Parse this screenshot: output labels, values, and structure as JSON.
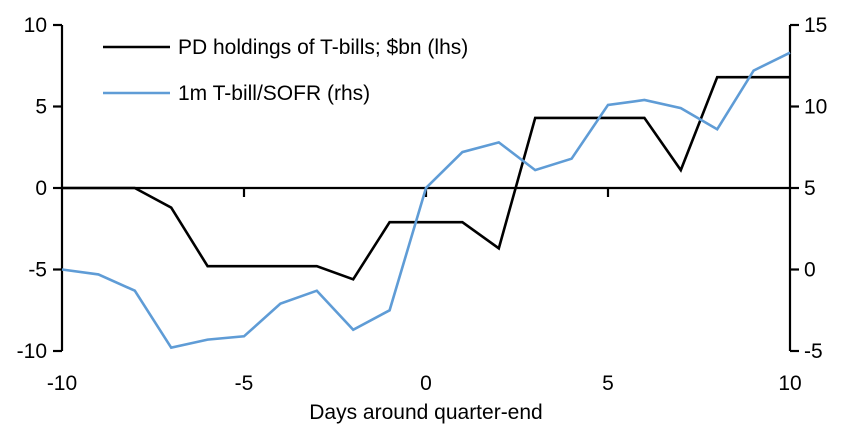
{
  "chart_data": {
    "type": "line",
    "title": "",
    "xlabel": "Days around quarter-end",
    "ylabel_left": "",
    "ylabel_right": "",
    "grid": false,
    "legend_position": "top-left",
    "x": [
      -10,
      -9,
      -8,
      -7,
      -6,
      -5,
      -4,
      -3,
      -2,
      -1,
      0,
      1,
      2,
      3,
      4,
      5,
      6,
      7,
      8,
      9,
      10
    ],
    "series": [
      {
        "name": "PD holdings of T-bills; $bn (lhs)",
        "axis": "left",
        "color": "#000000",
        "values": [
          0,
          0,
          0,
          -1.2,
          -4.8,
          -4.8,
          -4.8,
          -4.8,
          -5.6,
          -2.1,
          -2.1,
          -2.1,
          -3.7,
          4.3,
          4.3,
          4.3,
          4.3,
          1.1,
          6.8,
          6.8,
          6.8
        ]
      },
      {
        "name": "1m T-bill/SOFR (rhs)",
        "axis": "right",
        "color": "#5f9cd6",
        "values": [
          0.0,
          -0.3,
          -1.3,
          -4.8,
          -4.3,
          -4.1,
          -2.1,
          -1.3,
          -3.7,
          -2.5,
          5.0,
          7.2,
          7.8,
          6.1,
          6.8,
          10.1,
          10.4,
          9.9,
          8.6,
          12.2,
          13.3
        ]
      }
    ],
    "left_axis": {
      "range": [
        -10,
        10
      ],
      "ticks": [
        -10,
        -5,
        0,
        5,
        10
      ]
    },
    "right_axis": {
      "range": [
        -5,
        15
      ],
      "ticks": [
        -5,
        0,
        5,
        10,
        15
      ]
    },
    "x_axis": {
      "range": [
        -10,
        10
      ],
      "ticks": [
        -10,
        -5,
        0,
        5,
        10
      ],
      "tick_marks_on_zero_line": [
        -5,
        0,
        5
      ]
    }
  },
  "colors": {
    "pd_line": "#000000",
    "sofr_line": "#5f9cd6",
    "axis": "#000000",
    "background": "#ffffff"
  }
}
